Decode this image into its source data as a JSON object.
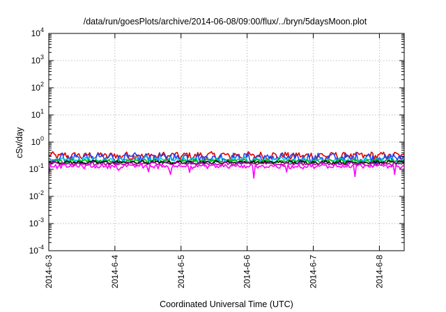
{
  "chart_data": {
    "type": "line",
    "title": "/data/run/goesPlots/archive/2014-06-08/09:00/flux/../bryn/5daysMoon.plot",
    "xlabel": "Coordinated Universal Time (UTC)",
    "ylabel": "cSv/day",
    "yscale": "log",
    "ylim": [
      0.0001,
      10000
    ],
    "xlim": [
      "2014-06-03 00:00",
      "2014-06-08 09:00"
    ],
    "x_ticks": [
      "2014-6-3",
      "2014-6-4",
      "2014-6-5",
      "2014-6-6",
      "2014-6-7",
      "2014-6-8"
    ],
    "y_ticks": [
      {
        "base": "10",
        "exp": "-4"
      },
      {
        "base": "10",
        "exp": "-3"
      },
      {
        "base": "10",
        "exp": "-2"
      },
      {
        "base": "10",
        "exp": "-1"
      },
      {
        "base": "10",
        "exp": "0"
      },
      {
        "base": "10",
        "exp": "1"
      },
      {
        "base": "10",
        "exp": "2"
      },
      {
        "base": "10",
        "exp": "3"
      },
      {
        "base": "10",
        "exp": "4"
      }
    ],
    "grid": true,
    "series": [
      {
        "color": "#e00000",
        "level": 0.32,
        "var": 0.09
      },
      {
        "color": "#2244ee",
        "level": 0.27,
        "var": 0.1
      },
      {
        "color": "#00c8e0",
        "level": 0.22,
        "var": 0.05
      },
      {
        "color": "#00b400",
        "level": 0.2,
        "var": 0.03
      },
      {
        "color": "#000000",
        "level": 0.18,
        "var": 0.02
      },
      {
        "color": "#b0009a",
        "level": 0.16,
        "var": 0.02
      },
      {
        "color": "#ff00ff",
        "level": 0.13,
        "var": 0.02
      }
    ]
  }
}
